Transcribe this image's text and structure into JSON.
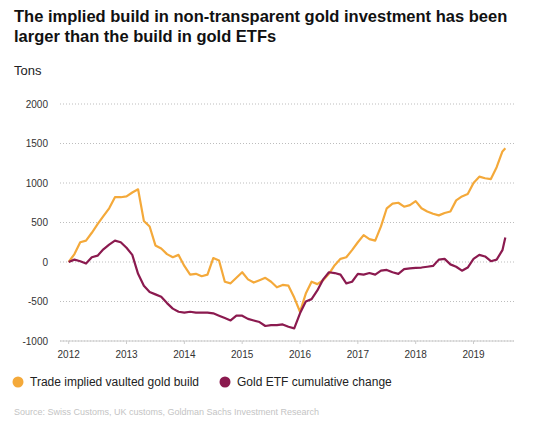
{
  "chart_data": {
    "type": "line",
    "title": "The implied build in non-transparent gold investment has been larger than the build in gold ETFs",
    "y_label": "Tons",
    "source": "Source: Swiss Customs, UK customs, Goldman Sachs Investment Research",
    "x": [
      2012.0,
      2012.1,
      2012.2,
      2012.3,
      2012.4,
      2012.5,
      2012.6,
      2012.7,
      2012.8,
      2012.9,
      2013.0,
      2013.1,
      2013.2,
      2013.3,
      2013.4,
      2013.5,
      2013.6,
      2013.7,
      2013.8,
      2013.9,
      2014.0,
      2014.1,
      2014.2,
      2014.3,
      2014.4,
      2014.5,
      2014.6,
      2014.7,
      2014.8,
      2014.9,
      2015.0,
      2015.1,
      2015.2,
      2015.3,
      2015.4,
      2015.5,
      2015.6,
      2015.7,
      2015.8,
      2015.9,
      2016.0,
      2016.1,
      2016.2,
      2016.3,
      2016.4,
      2016.5,
      2016.6,
      2016.7,
      2016.8,
      2016.9,
      2017.0,
      2017.1,
      2017.2,
      2017.3,
      2017.4,
      2017.5,
      2017.6,
      2017.7,
      2017.8,
      2017.9,
      2018.0,
      2018.1,
      2018.2,
      2018.3,
      2018.4,
      2018.5,
      2018.6,
      2018.7,
      2018.8,
      2018.9,
      2019.0,
      2019.1,
      2019.2,
      2019.3,
      2019.4,
      2019.5,
      2019.55
    ],
    "series": [
      {
        "name": "Trade implied vaulted gold build",
        "color": "#f4a93a",
        "values": [
          0,
          100,
          250,
          270,
          370,
          480,
          580,
          680,
          820,
          820,
          830,
          880,
          920,
          520,
          450,
          210,
          170,
          100,
          60,
          90,
          -50,
          -160,
          -150,
          -180,
          -160,
          50,
          20,
          -250,
          -270,
          -200,
          -130,
          -220,
          -260,
          -230,
          -200,
          -250,
          -320,
          -290,
          -300,
          -450,
          -630,
          -400,
          -250,
          -280,
          -230,
          -150,
          -40,
          40,
          60,
          150,
          250,
          340,
          290,
          270,
          450,
          680,
          740,
          750,
          700,
          720,
          770,
          680,
          640,
          610,
          590,
          620,
          640,
          780,
          830,
          860,
          1000,
          1080,
          1060,
          1050,
          1200,
          1400,
          1440
        ]
      },
      {
        "name": "Gold ETF cumulative change",
        "color": "#8b1a4f",
        "values": [
          0,
          30,
          10,
          -20,
          60,
          80,
          160,
          220,
          270,
          250,
          180,
          90,
          -150,
          -300,
          -380,
          -410,
          -440,
          -520,
          -590,
          -630,
          -640,
          -630,
          -640,
          -640,
          -640,
          -650,
          -680,
          -710,
          -740,
          -680,
          -680,
          -720,
          -740,
          -760,
          -810,
          -800,
          -800,
          -790,
          -820,
          -840,
          -650,
          -500,
          -470,
          -360,
          -220,
          -130,
          -140,
          -160,
          -270,
          -250,
          -150,
          -160,
          -140,
          -160,
          -110,
          -100,
          -130,
          -150,
          -90,
          -80,
          -75,
          -70,
          -60,
          -50,
          30,
          40,
          -30,
          -60,
          -110,
          -70,
          40,
          90,
          70,
          10,
          30,
          150,
          310
        ]
      }
    ],
    "xlim": [
      2011.85,
      2019.7
    ],
    "xticks": [
      2012,
      2013,
      2014,
      2015,
      2016,
      2017,
      2018,
      2019
    ],
    "ylim": [
      -1000,
      2000
    ],
    "yticks": [
      -1000,
      -500,
      0,
      500,
      1000,
      1500,
      2000
    ],
    "grid": true,
    "legend": "bottom-left"
  }
}
